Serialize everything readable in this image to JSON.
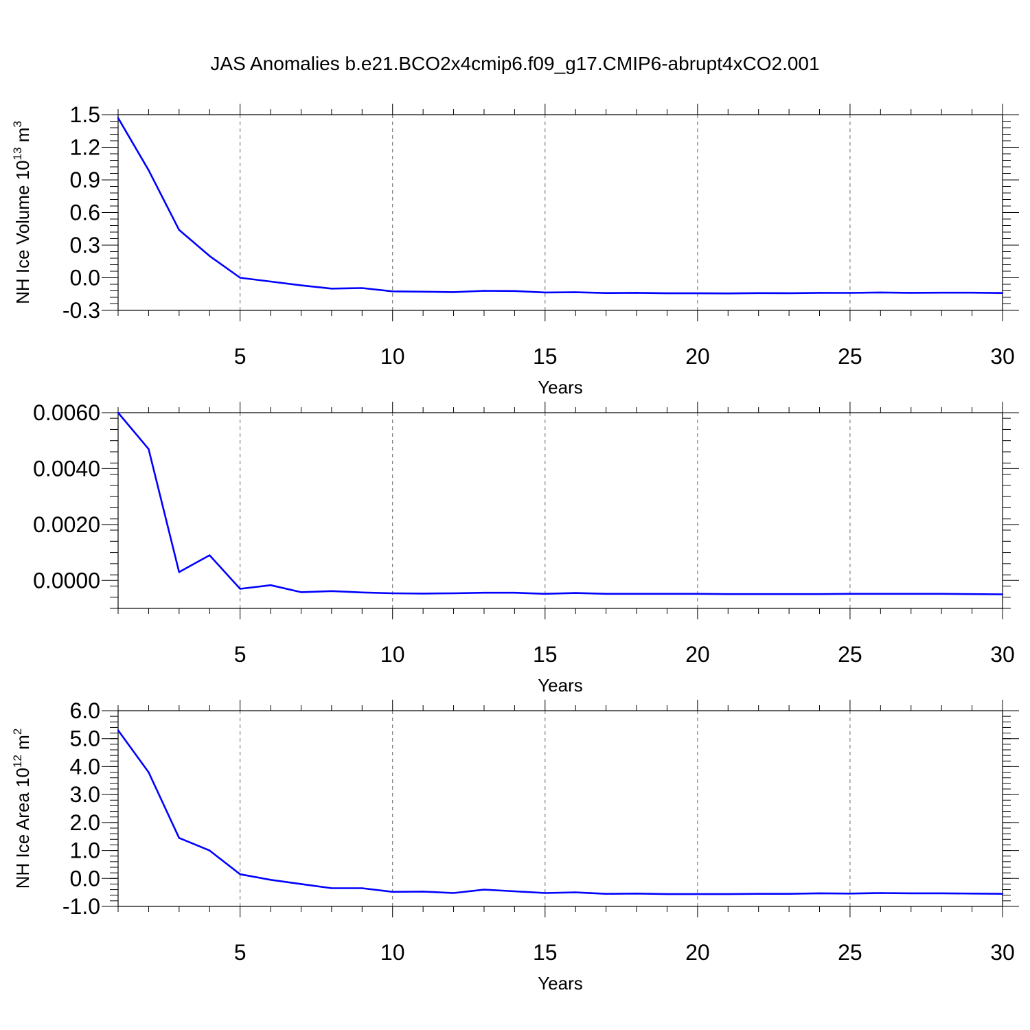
{
  "title": "JAS Anomalies b.e21.BCO2x4cmip6.f09_g17.CMIP6-abrupt4xCO2.001",
  "chart_data": [
    {
      "type": "line",
      "title": "JAS Anomalies b.e21.BCO2x4cmip6.f09_g17.CMIP6-abrupt4xCO2.001",
      "ylabel": {
        "text": "NH Ice Volume 10",
        "sup": "13",
        "unit": " m",
        "unit_sup": "3"
      },
      "xlabel": "Years",
      "xlim": [
        1,
        30
      ],
      "ylim": [
        -0.3,
        1.5
      ],
      "xticks": [
        "5",
        "10",
        "15",
        "20",
        "25",
        "30"
      ],
      "yticks": [
        "-0.3",
        "0.0",
        "0.3",
        "0.6",
        "0.9",
        "1.2",
        "1.5"
      ],
      "grid": "vertical dashed",
      "color": "#0000ff",
      "x": [
        1,
        2,
        3,
        4,
        5,
        6,
        7,
        8,
        9,
        10,
        11,
        12,
        13,
        14,
        15,
        16,
        17,
        18,
        19,
        20,
        21,
        22,
        23,
        24,
        25,
        26,
        27,
        28,
        29,
        30
      ],
      "values": [
        1.47,
        0.99,
        0.44,
        0.2,
        0.0,
        -0.035,
        -0.07,
        -0.1,
        -0.095,
        -0.125,
        -0.128,
        -0.132,
        -0.12,
        -0.122,
        -0.135,
        -0.133,
        -0.14,
        -0.138,
        -0.143,
        -0.143,
        -0.144,
        -0.141,
        -0.142,
        -0.138,
        -0.139,
        -0.135,
        -0.138,
        -0.137,
        -0.137,
        -0.14
      ]
    },
    {
      "type": "line",
      "xlabel": "Years",
      "xlim": [
        1,
        30
      ],
      "ylim": [
        -0.001,
        0.006
      ],
      "xticks": [
        "5",
        "10",
        "15",
        "20",
        "25",
        "30"
      ],
      "yticks": [
        "0.0000",
        "0.0020",
        "0.0040",
        "0.0060"
      ],
      "grid": "vertical dashed",
      "color": "#0000ff",
      "x": [
        1,
        2,
        3,
        4,
        5,
        6,
        7,
        8,
        9,
        10,
        11,
        12,
        13,
        14,
        15,
        16,
        17,
        18,
        19,
        20,
        21,
        22,
        23,
        24,
        25,
        26,
        27,
        28,
        29,
        30
      ],
      "values": [
        0.006,
        0.0047,
        0.0003,
        0.0009,
        -0.0003,
        -0.00017,
        -0.00042,
        -0.00038,
        -0.00043,
        -0.00046,
        -0.00047,
        -0.00046,
        -0.00044,
        -0.00044,
        -0.00048,
        -0.00045,
        -0.00048,
        -0.00048,
        -0.00048,
        -0.00048,
        -0.00049,
        -0.00049,
        -0.00049,
        -0.00049,
        -0.00048,
        -0.00048,
        -0.00048,
        -0.00048,
        -0.00049,
        -0.0005
      ]
    },
    {
      "type": "line",
      "ylabel": {
        "text": "NH Ice Area 10",
        "sup": "12",
        "unit": " m",
        "unit_sup": "2"
      },
      "xlabel": "Years",
      "xlim": [
        1,
        30
      ],
      "ylim": [
        -1.0,
        6.0
      ],
      "xticks": [
        "5",
        "10",
        "15",
        "20",
        "25",
        "30"
      ],
      "yticks": [
        "-1.0",
        "0.0",
        "1.0",
        "2.0",
        "3.0",
        "4.0",
        "5.0",
        "6.0"
      ],
      "grid": "vertical dashed",
      "color": "#0000ff",
      "x": [
        1,
        2,
        3,
        4,
        5,
        6,
        7,
        8,
        9,
        10,
        11,
        12,
        13,
        14,
        15,
        16,
        17,
        18,
        19,
        20,
        21,
        22,
        23,
        24,
        25,
        26,
        27,
        28,
        29,
        30
      ],
      "values": [
        5.3,
        3.8,
        1.45,
        1.0,
        0.15,
        -0.05,
        -0.2,
        -0.35,
        -0.35,
        -0.48,
        -0.47,
        -0.52,
        -0.4,
        -0.46,
        -0.52,
        -0.5,
        -0.55,
        -0.54,
        -0.56,
        -0.56,
        -0.56,
        -0.55,
        -0.55,
        -0.53,
        -0.54,
        -0.52,
        -0.53,
        -0.53,
        -0.54,
        -0.55
      ]
    }
  ]
}
